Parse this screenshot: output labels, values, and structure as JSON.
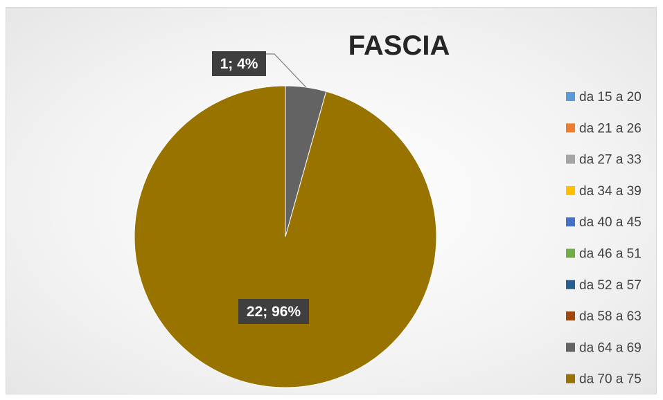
{
  "chart_data": {
    "type": "pie",
    "title": "FASCIA",
    "categories": [
      "da 15 a 20",
      "da 21 a 26",
      "da 27 a 33",
      "da 34 a 39",
      "da 40 a 45",
      "da 46 a 51",
      "da 52 a 57",
      "da 58 a 63",
      "da 64 a 69",
      "da 70 a 75"
    ],
    "values": [
      0,
      0,
      0,
      0,
      0,
      0,
      0,
      0,
      1,
      22
    ],
    "percent_labels": [
      "",
      "",
      "",
      "",
      "",
      "",
      "",
      "",
      "1; 4%",
      "22; 96%"
    ],
    "colors": [
      "#5b9bd5",
      "#ed7d31",
      "#a5a5a5",
      "#ffc000",
      "#4472c4",
      "#70ad47",
      "#255e91",
      "#9e480e",
      "#636363",
      "#997300"
    ],
    "legend_position": "right"
  }
}
